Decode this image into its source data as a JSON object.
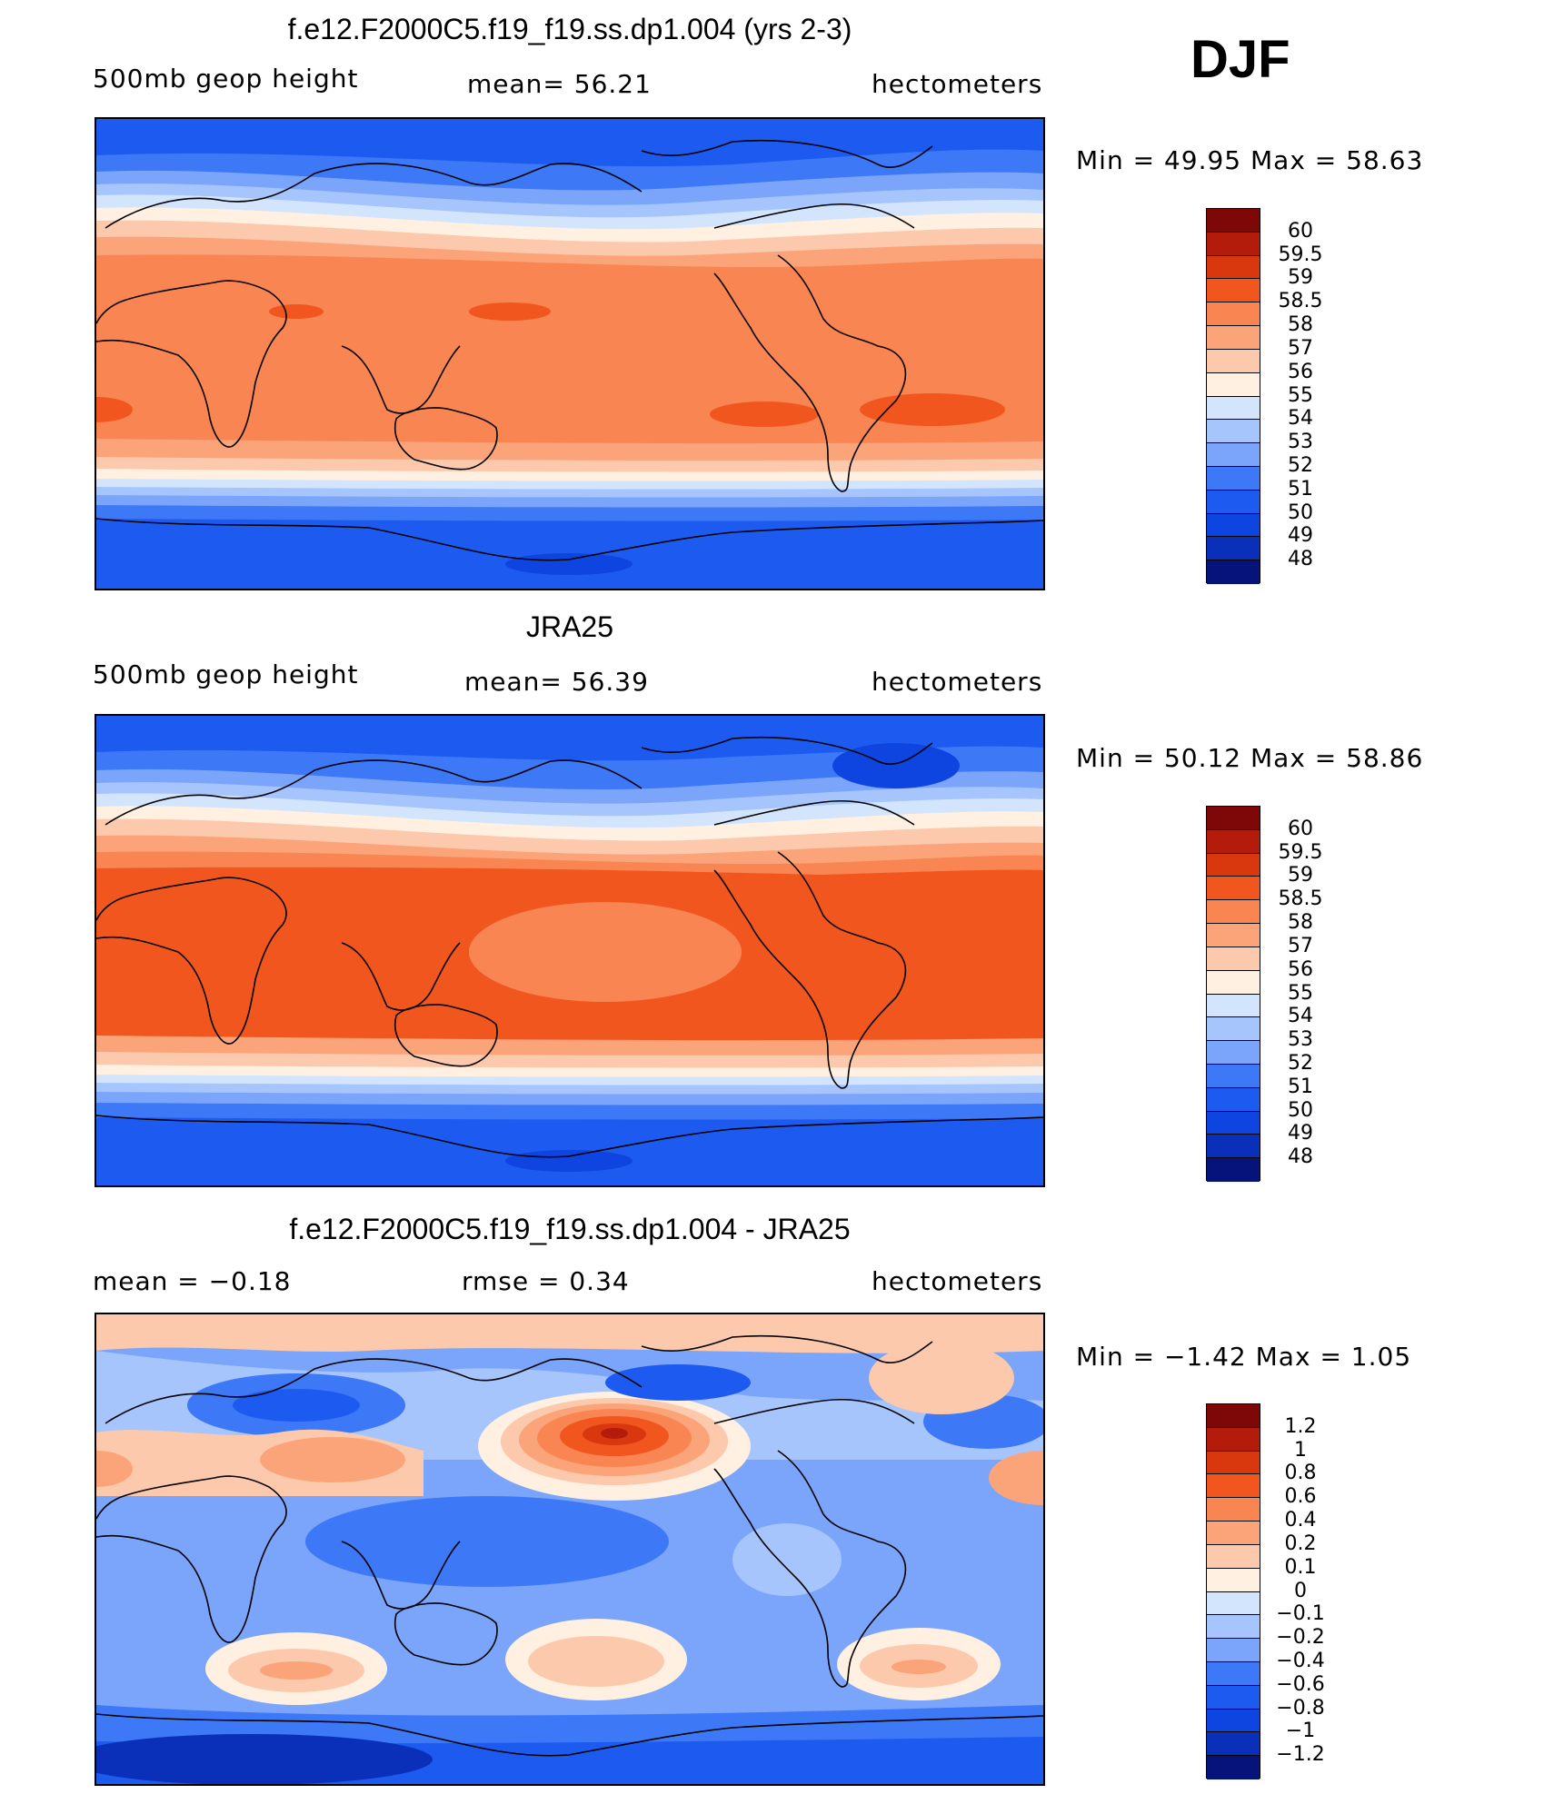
{
  "season": "DJF",
  "colors": {
    "height": [
      "#05137a",
      "#0a2fb8",
      "#0e44df",
      "#1d5bf0",
      "#3d78f6",
      "#7aa5fa",
      "#a6c5fc",
      "#d3e5fd",
      "#fff0e2",
      "#fcc9ad",
      "#fba47a",
      "#f98552",
      "#f2561f",
      "#d9370e",
      "#b31b0a",
      "#7e0808"
    ],
    "diff": [
      "#05137a",
      "#0a2fb8",
      "#0e44df",
      "#1d5bf0",
      "#3d78f6",
      "#7aa5fa",
      "#a6c5fc",
      "#d3e5fd",
      "#fff0e2",
      "#fcc9ad",
      "#fba47a",
      "#f98552",
      "#f2561f",
      "#d9370e",
      "#b31b0a",
      "#7e0808"
    ]
  },
  "panels": [
    {
      "title": "f.e12.F2000C5.f19_f19.ss.dp1.004 (yrs 2-3)",
      "left_label": "500mb geop height",
      "center_label": "mean=   56.21",
      "right_label": "hectometers",
      "minmax": "Min =   49.95 Max =   58.63",
      "colorbar_labels": [
        "60",
        "59.5",
        "59",
        "58.5",
        "58",
        "57",
        "56",
        "55",
        "54",
        "53",
        "52",
        "51",
        "50",
        "49",
        "48"
      ]
    },
    {
      "title": "JRA25",
      "left_label": "500mb geop height",
      "center_label": "mean=   56.39",
      "right_label": "hectometers",
      "minmax": "Min =   50.12 Max =   58.86",
      "colorbar_labels": [
        "60",
        "59.5",
        "59",
        "58.5",
        "58",
        "57",
        "56",
        "55",
        "54",
        "53",
        "52",
        "51",
        "50",
        "49",
        "48"
      ]
    },
    {
      "title": "f.e12.F2000C5.f19_f19.ss.dp1.004 - JRA25",
      "left_label": "mean =   −0.18",
      "center_label": "rmse =    0.34",
      "right_label": "hectometers",
      "minmax": "Min =  −1.42 Max =    1.05",
      "colorbar_labels": [
        "1.2",
        "1",
        "0.8",
        "0.6",
        "0.4",
        "0.2",
        "0.1",
        "0",
        "−0.1",
        "−0.2",
        "−0.4",
        "−0.6",
        "−0.8",
        "−1",
        "−1.2"
      ]
    }
  ]
}
